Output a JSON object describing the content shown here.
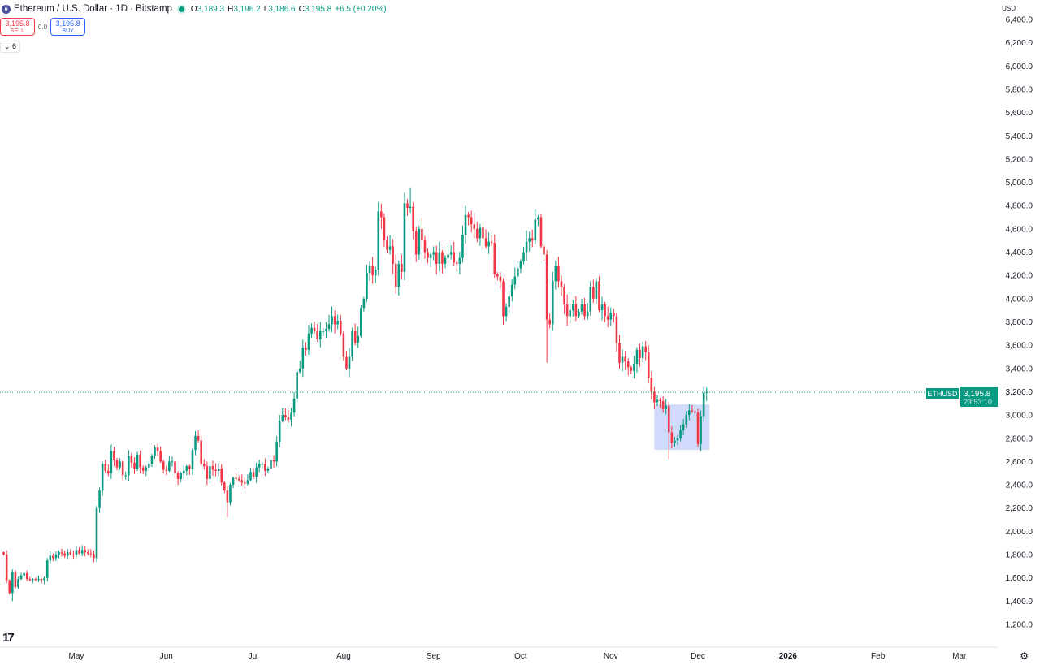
{
  "header": {
    "title": "Ethereum / U.S. Dollar · 1D · Bitstamp",
    "open_label": "O",
    "open": "3,189.3",
    "high_label": "H",
    "high": "3,196.2",
    "low_label": "L",
    "low": "3,186.6",
    "close_label": "C",
    "close": "3,195.8",
    "change": "+6.5 (+0.20%)",
    "market_status_color": "#089981"
  },
  "trade": {
    "sell_price": "3,195.8",
    "sell_label": "SELL",
    "spread": "0.0",
    "buy_price": "3,195.8",
    "buy_label": "BUY"
  },
  "indicators_toggle": "6",
  "currency": "USD",
  "price_tag": {
    "symbol": "ETHUSD",
    "price": "3,195.8",
    "countdown": "23:53:10"
  },
  "icons": {
    "logo": "tradingview-logo-icon",
    "settings": "gear-icon",
    "coin": "ethereum-icon"
  },
  "chart_data": {
    "type": "candlestick",
    "title": "Ethereum / U.S. Dollar · 1D · Bitstamp",
    "start_date": "2025-04-06",
    "interval": "1D",
    "first_open": 1820,
    "closes": [
      1800,
      1580,
      1470,
      1650,
      1520,
      1590,
      1620,
      1640,
      1590,
      1580,
      1590,
      1585,
      1590,
      1580,
      1600,
      1750,
      1790,
      1770,
      1800,
      1820,
      1810,
      1790,
      1820,
      1800,
      1795,
      1840,
      1810,
      1840,
      1820,
      1810,
      1805,
      1770,
      2200,
      2350,
      2580,
      2520,
      2500,
      2690,
      2610,
      2550,
      2600,
      2480,
      2480,
      2650,
      2590,
      2540,
      2660,
      2550,
      2520,
      2550,
      2580,
      2650,
      2720,
      2690,
      2600,
      2530,
      2520,
      2600,
      2600,
      2500,
      2450,
      2500,
      2520,
      2560,
      2540,
      2700,
      2820,
      2780,
      2580,
      2560,
      2450,
      2560,
      2530,
      2520,
      2540,
      2420,
      2350,
      2250,
      2400,
      2460,
      2450,
      2440,
      2420,
      2410,
      2440,
      2510,
      2470,
      2550,
      2580,
      2580,
      2520,
      2540,
      2610,
      2600,
      2770,
      2950,
      3000,
      2980,
      2960,
      3020,
      3140,
      3370,
      3400,
      3580,
      3560,
      3700,
      3750,
      3720,
      3650,
      3720,
      3720,
      3740,
      3780,
      3850,
      3780,
      3810,
      3700,
      3500,
      3400,
      3500,
      3720,
      3620,
      3680,
      3920,
      4000,
      4220,
      4280,
      4200,
      4250,
      4750,
      4700,
      4500,
      4420,
      4450,
      4300,
      4100,
      4300,
      4230,
      4820,
      4780,
      4790,
      4580,
      4380,
      4600,
      4500,
      4400,
      4350,
      4380,
      4400,
      4300,
      4400,
      4300,
      4350,
      4380,
      4400,
      4310,
      4300,
      4350,
      4550,
      4720,
      4700,
      4640,
      4600,
      4520,
      4610,
      4520,
      4450,
      4490,
      4480,
      4210,
      4190,
      4150,
      3850,
      3930,
      4020,
      4120,
      4190,
      4260,
      4320,
      4400,
      4490,
      4520,
      4500,
      4680,
      4700,
      4450,
      4380,
      3820,
      3780,
      4150,
      4280,
      4150,
      4100,
      3950,
      3850,
      3900,
      3950,
      3850,
      3890,
      3950,
      3850,
      3890,
      4100,
      4000,
      4150,
      3900,
      3950,
      3850,
      3820,
      3880,
      3850,
      3620,
      3450,
      3500,
      3460,
      3410,
      3380,
      3440,
      3560,
      3490,
      3590,
      3540,
      3320,
      3200,
      3110,
      3130,
      3120,
      3050,
      3080,
      2850,
      2760,
      2780,
      2800,
      2870,
      2920,
      3000,
      3040,
      3030,
      3020,
      2750,
      2990,
      3189.3,
      3195.8
    ],
    "notable_extremes": [
      {
        "date": "2025-04-09",
        "low": 1400
      },
      {
        "date": "2025-06-22",
        "low": 2120
      },
      {
        "date": "2025-08-24",
        "high": 4950
      },
      {
        "date": "2025-10-10",
        "low": 3450
      },
      {
        "date": "2025-11-21",
        "low": 2620
      }
    ],
    "current_price": 3195.8,
    "highlight_box": {
      "from": "2025-11-16",
      "to": "2025-12-05",
      "price_low": 2700,
      "price_high": 3090,
      "color": "#b3c1f7"
    },
    "x_ticks": [
      {
        "date": "2025-05-01",
        "label": "May"
      },
      {
        "date": "2025-06-01",
        "label": "Jun"
      },
      {
        "date": "2025-07-01",
        "label": "Jul"
      },
      {
        "date": "2025-08-01",
        "label": "Aug"
      },
      {
        "date": "2025-09-01",
        "label": "Sep"
      },
      {
        "date": "2025-10-01",
        "label": "Oct"
      },
      {
        "date": "2025-11-01",
        "label": "Nov"
      },
      {
        "date": "2025-12-01",
        "label": "Dec"
      },
      {
        "date": "2026-01-01",
        "label": "2026"
      },
      {
        "date": "2026-02-01",
        "label": "Feb"
      },
      {
        "date": "2026-03-01",
        "label": "Mar"
      }
    ],
    "y_ticks": [
      "1,200.0",
      "1,400.0",
      "1,600.0",
      "1,800.0",
      "2,000.0",
      "2,200.0",
      "2,400.0",
      "2,600.0",
      "2,800.0",
      "3,000.0",
      "3,200.0",
      "3,400.0",
      "3,600.0",
      "3,800.0",
      "4,000.0",
      "4,200.0",
      "4,400.0",
      "4,600.0",
      "4,800.0",
      "5,000.0",
      "5,200.0",
      "5,400.0",
      "5,600.0",
      "5,800.0",
      "6,000.0",
      "6,200.0",
      "6,400.0"
    ],
    "ylim": [
      1200,
      6400
    ],
    "up_color": "#089981",
    "down_color": "#f23645",
    "grid": false
  }
}
